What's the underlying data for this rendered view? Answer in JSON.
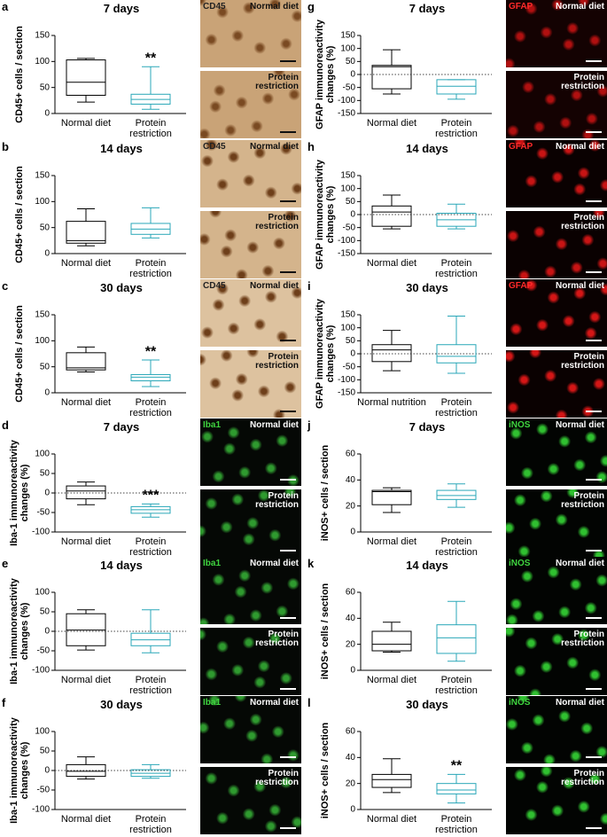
{
  "chart_data": [
    {
      "type": "box",
      "panel": "a",
      "title": "7 days",
      "y_label": "CD45+ cells / section",
      "categories": [
        "Normal diet",
        "Protein restriction"
      ],
      "colors": [
        "#000000",
        "#2aa7b8"
      ],
      "ylim": [
        0,
        150
      ],
      "yticks": [
        0,
        50,
        100,
        150
      ],
      "zero_line": false,
      "boxes": [
        {
          "min": 22,
          "q1": 35,
          "median": 60,
          "q3": 103,
          "max": 106
        },
        {
          "min": 8,
          "q1": 18,
          "median": 27,
          "q3": 37,
          "max": 90
        }
      ],
      "annotations": [
        null,
        "**"
      ]
    },
    {
      "type": "box",
      "panel": "b",
      "title": "14 days",
      "y_label": "CD45+ cells / section",
      "categories": [
        "Normal diet",
        "Protein restriction"
      ],
      "colors": [
        "#000000",
        "#2aa7b8"
      ],
      "ylim": [
        0,
        150
      ],
      "yticks": [
        0,
        50,
        100,
        150
      ],
      "zero_line": false,
      "boxes": [
        {
          "min": 15,
          "q1": 20,
          "median": 25,
          "q3": 62,
          "max": 86
        },
        {
          "min": 30,
          "q1": 37,
          "median": 47,
          "q3": 58,
          "max": 88
        }
      ],
      "annotations": [
        null,
        null
      ]
    },
    {
      "type": "box",
      "panel": "c",
      "title": "30 days",
      "y_label": "CD45+ cells / section",
      "categories": [
        "Normal diet",
        "Protein restriction"
      ],
      "colors": [
        "#000000",
        "#2aa7b8"
      ],
      "ylim": [
        0,
        150
      ],
      "yticks": [
        0,
        50,
        100,
        150
      ],
      "zero_line": false,
      "boxes": [
        {
          "min": 40,
          "q1": 44,
          "median": 48,
          "q3": 77,
          "max": 88
        },
        {
          "min": 12,
          "q1": 23,
          "median": 30,
          "q3": 35,
          "max": 63
        }
      ],
      "annotations": [
        null,
        "**"
      ]
    },
    {
      "type": "box",
      "panel": "d",
      "title": "7 days",
      "y_label": "Iba-1 immunoreactivity changes (%)",
      "categories": [
        "Normal diet",
        "Protein restriction"
      ],
      "colors": [
        "#000000",
        "#2aa7b8"
      ],
      "ylim": [
        -100,
        100
      ],
      "yticks": [
        -100,
        -50,
        0,
        50,
        100
      ],
      "zero_line": true,
      "boxes": [
        {
          "min": -30,
          "q1": -15,
          "median": 5,
          "q3": 18,
          "max": 28
        },
        {
          "min": -62,
          "q1": -52,
          "median": -43,
          "q3": -35,
          "max": -28
        }
      ],
      "annotations": [
        null,
        "***"
      ]
    },
    {
      "type": "box",
      "panel": "e",
      "title": "14 days",
      "y_label": "Iba-1 immunoreactivity changes (%)",
      "categories": [
        "Normal diet",
        "Protein restriction"
      ],
      "colors": [
        "#000000",
        "#2aa7b8"
      ],
      "ylim": [
        -100,
        100
      ],
      "yticks": [
        -100,
        -50,
        0,
        50,
        100
      ],
      "zero_line": true,
      "boxes": [
        {
          "min": -48,
          "q1": -37,
          "median": 3,
          "q3": 45,
          "max": 55
        },
        {
          "min": -55,
          "q1": -37,
          "median": -22,
          "q3": -5,
          "max": 55
        }
      ],
      "annotations": [
        null,
        null
      ]
    },
    {
      "type": "box",
      "panel": "f",
      "title": "30 days",
      "y_label": "Iba-1 immunoreactivity changes (%)",
      "categories": [
        "Normal diet",
        "Protein restriction"
      ],
      "colors": [
        "#000000",
        "#2aa7b8"
      ],
      "ylim": [
        -100,
        100
      ],
      "yticks": [
        -100,
        -50,
        0,
        50,
        100
      ],
      "zero_line": true,
      "boxes": [
        {
          "min": -22,
          "q1": -15,
          "median": -2,
          "q3": 15,
          "max": 35
        },
        {
          "min": -20,
          "q1": -15,
          "median": -7,
          "q3": 2,
          "max": 15
        }
      ],
      "annotations": [
        null,
        null
      ]
    },
    {
      "type": "box",
      "panel": "g",
      "title": "7 days",
      "y_label": "GFAP immunoreactivity changes (%)",
      "categories": [
        "Normal diet",
        "Protein restriction"
      ],
      "colors": [
        "#000000",
        "#2aa7b8"
      ],
      "ylim": [
        -150,
        150
      ],
      "yticks": [
        -150,
        -100,
        -50,
        0,
        50,
        100,
        150
      ],
      "zero_line": true,
      "boxes": [
        {
          "min": -75,
          "q1": -55,
          "median": 30,
          "q3": 35,
          "max": 95
        },
        {
          "min": -95,
          "q1": -75,
          "median": -45,
          "q3": -20,
          "max": -20
        }
      ],
      "annotations": [
        null,
        null
      ]
    },
    {
      "type": "box",
      "panel": "h",
      "title": "14 days",
      "y_label": "GFAP immunoreactivity changes (%)",
      "categories": [
        "Normal diet",
        "Protein restriction"
      ],
      "colors": [
        "#000000",
        "#2aa7b8"
      ],
      "ylim": [
        -150,
        150
      ],
      "yticks": [
        -150,
        -100,
        -50,
        0,
        50,
        100,
        150
      ],
      "zero_line": true,
      "boxes": [
        {
          "min": -55,
          "q1": -45,
          "median": 10,
          "q3": 33,
          "max": 75
        },
        {
          "min": -55,
          "q1": -45,
          "median": -20,
          "q3": 5,
          "max": 40
        }
      ],
      "annotations": [
        null,
        null
      ]
    },
    {
      "type": "box",
      "panel": "i",
      "title": "30 days",
      "y_label": "GFAP immunoreactivity changes (%)",
      "categories": [
        "Normal nutrition",
        "Protein restriction"
      ],
      "colors": [
        "#000000",
        "#2aa7b8"
      ],
      "ylim": [
        -150,
        150
      ],
      "yticks": [
        -150,
        -100,
        -50,
        0,
        50,
        100,
        150
      ],
      "zero_line": true,
      "boxes": [
        {
          "min": -65,
          "q1": -30,
          "median": 15,
          "q3": 35,
          "max": 90
        },
        {
          "min": -75,
          "q1": -35,
          "median": -10,
          "q3": 35,
          "max": 145
        }
      ],
      "annotations": [
        null,
        null
      ]
    },
    {
      "type": "box",
      "panel": "j",
      "title": "7 days",
      "y_label": "iNOS+ cells / section",
      "categories": [
        "Normal diet",
        "Protein restriction"
      ],
      "colors": [
        "#000000",
        "#2aa7b8"
      ],
      "ylim": [
        0,
        60
      ],
      "yticks": [
        0,
        20,
        40,
        60
      ],
      "zero_line": false,
      "boxes": [
        {
          "min": 15,
          "q1": 21,
          "median": 31,
          "q3": 32,
          "max": 34
        },
        {
          "min": 19,
          "q1": 25,
          "median": 28,
          "q3": 32,
          "max": 37
        }
      ],
      "annotations": [
        null,
        null
      ]
    },
    {
      "type": "box",
      "panel": "k",
      "title": "14 days",
      "y_label": "iNOS+ cells / section",
      "categories": [
        "Normal diet",
        "Protein restriction"
      ],
      "colors": [
        "#000000",
        "#2aa7b8"
      ],
      "ylim": [
        0,
        60
      ],
      "yticks": [
        0,
        20,
        40,
        60
      ],
      "zero_line": false,
      "boxes": [
        {
          "min": 14,
          "q1": 15,
          "median": 20,
          "q3": 30,
          "max": 37
        },
        {
          "min": 7,
          "q1": 13,
          "median": 25,
          "q3": 35,
          "max": 53
        }
      ],
      "annotations": [
        null,
        null
      ]
    },
    {
      "type": "box",
      "panel": "l",
      "title": "30 days",
      "y_label": "iNOS+ cells / section",
      "categories": [
        "Normal diet",
        "Protein restriction"
      ],
      "colors": [
        "#000000",
        "#2aa7b8"
      ],
      "ylim": [
        0,
        60
      ],
      "yticks": [
        0,
        20,
        40,
        60
      ],
      "zero_line": false,
      "boxes": [
        {
          "min": 13,
          "q1": 17,
          "median": 23,
          "q3": 27,
          "max": 39
        },
        {
          "min": 5,
          "q1": 12,
          "median": 15,
          "q3": 20,
          "max": 27
        }
      ],
      "annotations": [
        null,
        "**"
      ]
    }
  ],
  "micrographs": [
    {
      "stain": "CD45",
      "stain_color": "#222222",
      "background": "#c9a377",
      "spots": "#7a4a22",
      "top": "Normal diet",
      "bottom": "Protein restriction"
    },
    {
      "stain": "CD45",
      "stain_color": "#222222",
      "background": "#d4b48c",
      "spots": "#6e3f1a",
      "top": "Normal diet",
      "bottom": "Protein restriction"
    },
    {
      "stain": "CD45",
      "stain_color": "#222222",
      "background": "#ddc29f",
      "spots": "#6e3f1a",
      "top": "Normal diet",
      "bottom": "Protein restriction"
    },
    {
      "stain": "Iba1",
      "stain_color": "#3fd43f",
      "background": "#050805",
      "spots": "#2f9a2f",
      "top": "Normal diet",
      "bottom": "Protein restriction"
    },
    {
      "stain": "Iba1",
      "stain_color": "#3fd43f",
      "background": "#050805",
      "spots": "#2f9a2f",
      "top": "Normal diet",
      "bottom": "Protein restriction"
    },
    {
      "stain": "Iba1",
      "stain_color": "#3fd43f",
      "background": "#050805",
      "spots": "#2f9a2f",
      "top": "Normal diet",
      "bottom": "Protein restriction"
    },
    {
      "stain": "GFAP",
      "stain_color": "#ff2a2a",
      "background": "#140202",
      "spots": "#b01010",
      "top": "Normal diet",
      "bottom": "Protein restriction"
    },
    {
      "stain": "GFAP",
      "stain_color": "#ff2a2a",
      "background": "#0a0101",
      "spots": "#c81414",
      "top": "Normal diet",
      "bottom": "Protein restriction"
    },
    {
      "stain": "GFAP",
      "stain_color": "#ff2a2a",
      "background": "#0a0101",
      "spots": "#d41616",
      "top": "Normal diet",
      "bottom": "Protein restriction"
    },
    {
      "stain": "iNOS",
      "stain_color": "#3fd43f",
      "background": "#020402",
      "spots": "#30c030",
      "top": "Normal diet",
      "bottom": "Protein restriction"
    },
    {
      "stain": "iNOS",
      "stain_color": "#3fd43f",
      "background": "#020402",
      "spots": "#30c030",
      "top": "Normal diet",
      "bottom": "Protein restriction"
    },
    {
      "stain": "iNOS",
      "stain_color": "#3fd43f",
      "background": "#020402",
      "spots": "#30c030",
      "top": "Normal diet",
      "bottom": "Protein restriction"
    }
  ]
}
